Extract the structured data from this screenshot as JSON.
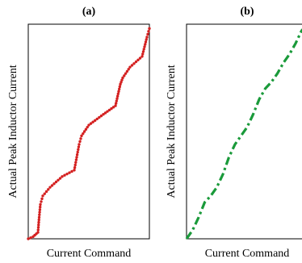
{
  "chart_data": [
    {
      "type": "line",
      "panel_label": "(a)",
      "title": "",
      "xlabel": "Current Command",
      "ylabel": "Actual Peak Inductor Current",
      "xlim": [
        0,
        1
      ],
      "ylim": [
        0,
        1
      ],
      "grid": false,
      "legend": "none",
      "line_style": "dotted",
      "color": "#d42020",
      "series": [
        {
          "x": [
            0.0,
            0.04,
            0.08,
            0.09,
            0.1,
            0.12,
            0.18,
            0.28,
            0.38,
            0.42,
            0.44,
            0.5,
            0.62,
            0.72,
            0.76,
            0.78,
            0.84,
            0.94,
            0.98,
            1.0
          ],
          "y": [
            0.0,
            0.01,
            0.03,
            0.1,
            0.16,
            0.2,
            0.24,
            0.29,
            0.32,
            0.44,
            0.48,
            0.53,
            0.58,
            0.62,
            0.72,
            0.75,
            0.8,
            0.85,
            0.94,
            0.98
          ]
        }
      ]
    },
    {
      "type": "line",
      "panel_label": "(b)",
      "title": "",
      "xlabel": "Current Command",
      "ylabel": "Actual Peak Inductor Current",
      "xlim": [
        0,
        1
      ],
      "ylim": [
        0,
        1
      ],
      "grid": false,
      "legend": "none",
      "line_style": "dash-dot",
      "color": "#1a9a3a",
      "series": [
        {
          "x": [
            0.0,
            0.05,
            0.1,
            0.15,
            0.2,
            0.25,
            0.3,
            0.35,
            0.4,
            0.45,
            0.5,
            0.55,
            0.6,
            0.65,
            0.7,
            0.75,
            0.8,
            0.85,
            0.9,
            0.95,
            1.0
          ],
          "y": [
            0.0,
            0.04,
            0.1,
            0.17,
            0.2,
            0.24,
            0.3,
            0.38,
            0.44,
            0.48,
            0.52,
            0.58,
            0.65,
            0.7,
            0.73,
            0.77,
            0.82,
            0.86,
            0.91,
            0.97,
            1.0
          ]
        }
      ]
    }
  ]
}
